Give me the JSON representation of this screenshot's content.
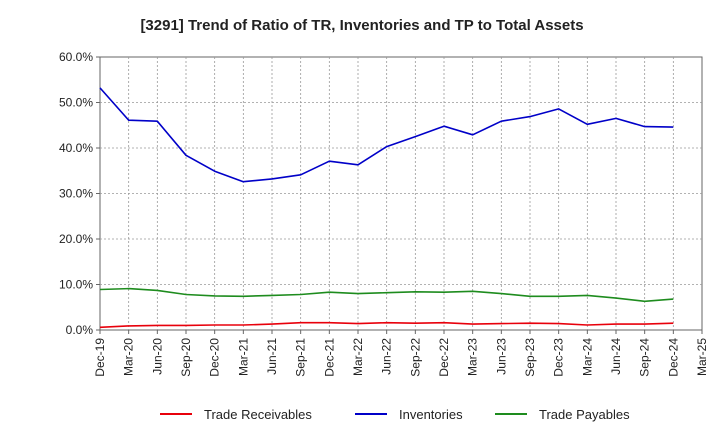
{
  "chart_data": {
    "type": "line",
    "title": "[3291]  Trend of Ratio of TR, Inventories and TP to Total Assets",
    "xlabel": "",
    "ylabel": "",
    "ylim": [
      0,
      60
    ],
    "y_ticks": [
      "0.0%",
      "10.0%",
      "20.0%",
      "30.0%",
      "40.0%",
      "50.0%",
      "60.0%"
    ],
    "y_tick_values": [
      0,
      10,
      20,
      30,
      40,
      50,
      60
    ],
    "x_tick_labels": [
      "Dec-19",
      "Mar-20",
      "Jun-20",
      "Sep-20",
      "Dec-20",
      "Mar-21",
      "Jun-21",
      "Sep-21",
      "Dec-21",
      "Mar-22",
      "Jun-22",
      "Sep-22",
      "Dec-22",
      "Mar-23",
      "Jun-23",
      "Sep-23",
      "Dec-23",
      "Mar-24",
      "Jun-24",
      "Sep-24",
      "Dec-24",
      "Mar-25"
    ],
    "categories": [
      "Dec-19",
      "Mar-20",
      "Jun-20",
      "Sep-20",
      "Dec-20",
      "Mar-21",
      "Jun-21",
      "Sep-21",
      "Dec-21",
      "Mar-22",
      "Jun-22",
      "Sep-22",
      "Dec-22",
      "Mar-23",
      "Jun-23",
      "Sep-23",
      "Dec-23",
      "Mar-24",
      "Jun-24",
      "Sep-24",
      "Dec-24"
    ],
    "grid": true,
    "legend_position": "bottom",
    "series": [
      {
        "name": "Trade Receivables",
        "color": "#e8000b",
        "values": [
          0.6,
          0.9,
          1.0,
          1.0,
          1.1,
          1.1,
          1.3,
          1.6,
          1.6,
          1.4,
          1.6,
          1.5,
          1.6,
          1.3,
          1.4,
          1.5,
          1.4,
          1.1,
          1.3,
          1.3,
          1.5
        ]
      },
      {
        "name": "Inventories",
        "color": "#0000c8",
        "values": [
          53.2,
          46.1,
          45.9,
          38.4,
          34.9,
          32.6,
          33.2,
          34.1,
          37.1,
          36.3,
          40.3,
          42.5,
          44.8,
          42.9,
          45.9,
          46.9,
          48.6,
          45.2,
          46.5,
          44.7,
          44.6
        ]
      },
      {
        "name": "Trade Payables",
        "color": "#1e8c1e",
        "values": [
          8.9,
          9.1,
          8.7,
          7.8,
          7.5,
          7.4,
          7.6,
          7.8,
          8.3,
          8.0,
          8.2,
          8.4,
          8.3,
          8.5,
          8.0,
          7.4,
          7.4,
          7.6,
          7.0,
          6.3,
          6.8
        ]
      }
    ]
  }
}
